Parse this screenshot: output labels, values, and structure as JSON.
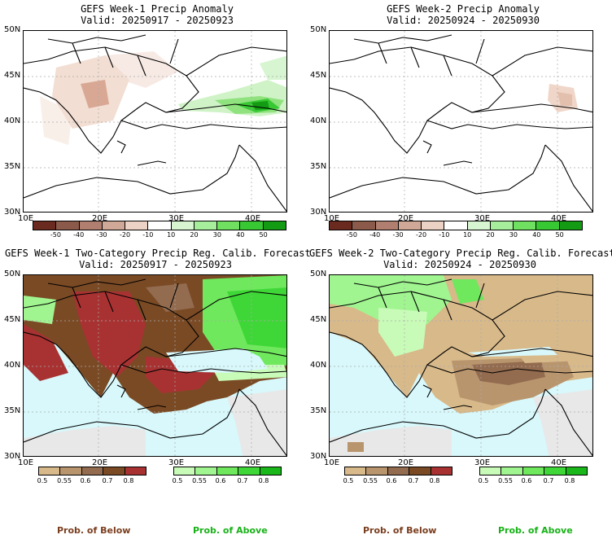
{
  "panels": [
    {
      "title": "GEFS Week-1 Precip Anomaly",
      "valid": "Valid: 20250917 - 20250923"
    },
    {
      "title": "GEFS Week-2 Precip Anomaly",
      "valid": "Valid: 20250924 - 20250930"
    },
    {
      "title": "GEFS Week-1 Two-Category Precip Reg. Calib. Forecast",
      "valid": "Valid: 20250917 - 20250923"
    },
    {
      "title": "GEFS Week-2 Two-Category Precip Reg. Calib. Forecast",
      "valid": "Valid: 20250924 - 20250930"
    }
  ],
  "lat_labels": [
    "50N",
    "45N",
    "40N",
    "35N",
    "30N"
  ],
  "lon_labels": [
    "10E",
    "20E",
    "30E",
    "40E"
  ],
  "anomaly_colorbar": {
    "labels": [
      "-50",
      "-40",
      "-30",
      "-20",
      "-10",
      "10",
      "20",
      "30",
      "40",
      "50"
    ],
    "colors": [
      "#6b2a1f",
      "#8c5a4a",
      "#b07f70",
      "#cfa898",
      "#ecd2c4",
      "#ffffff",
      "#d6f5d0",
      "#a6ee9b",
      "#6fe05f",
      "#38c833",
      "#139c13"
    ]
  },
  "below_colorbar": {
    "labels": [
      "0.5",
      "0.55",
      "0.6",
      "0.7",
      "0.8"
    ],
    "colors": [
      "#d8b98a",
      "#b9956e",
      "#936b4f",
      "#7a4a25",
      "#a83232"
    ]
  },
  "above_colorbar": {
    "labels": [
      "0.5",
      "0.55",
      "0.6",
      "0.7",
      "0.8"
    ],
    "colors": [
      "#c8fbb8",
      "#a0f590",
      "#6fe85d",
      "#3fd737",
      "#1ab71a"
    ]
  },
  "footer": {
    "below": "Prob. of Below",
    "above": "Prob. of Above"
  },
  "colors": {
    "sea": "#d8f8fb",
    "land_no_signal": "#e8e8e8",
    "above_text": "#17b217",
    "below_text": "#7a3d1e"
  }
}
